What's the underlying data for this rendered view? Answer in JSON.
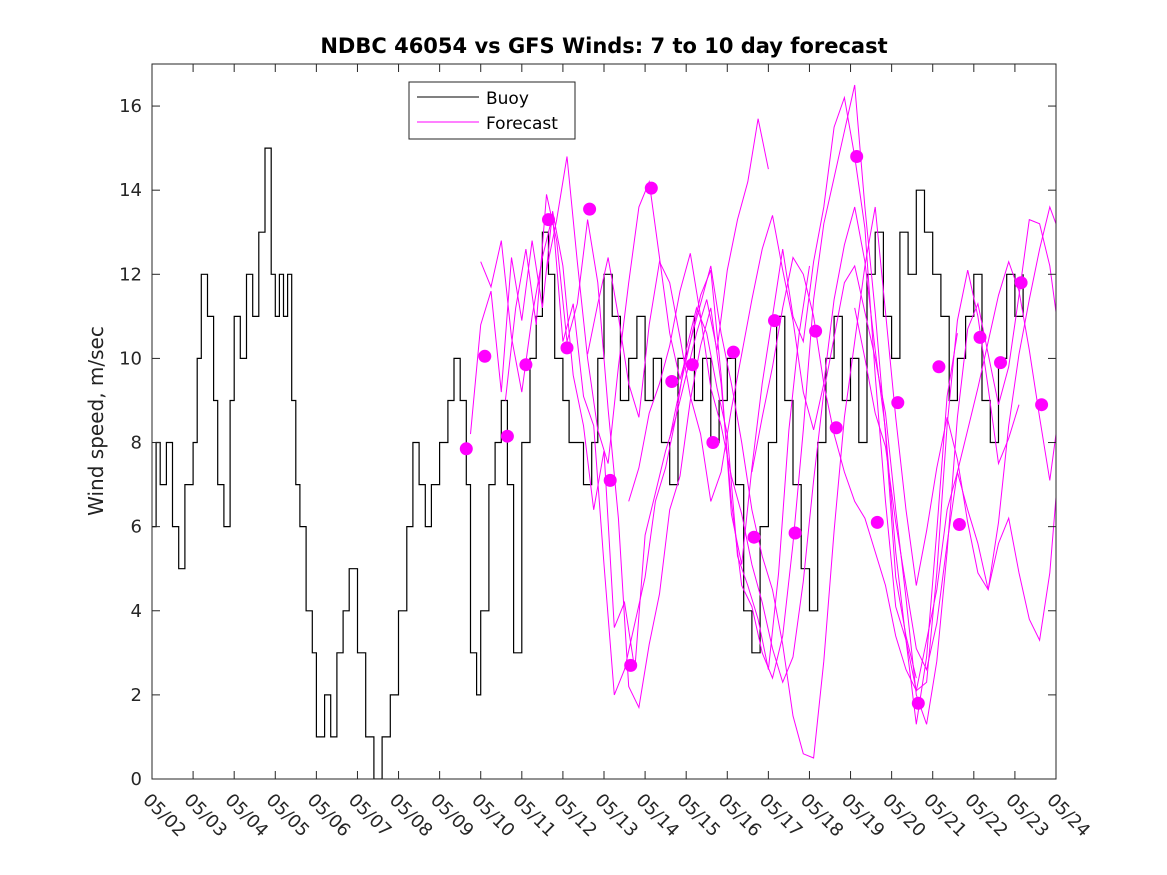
{
  "chart_data": {
    "type": "line",
    "title": "NDBC 46054 vs GFS Winds: 7 to 10 day forecast",
    "xlabel": "",
    "ylabel": "Wind speed, m/sec",
    "xlim": [
      "05/02",
      "05/24"
    ],
    "ylim": [
      0,
      17
    ],
    "y_ticks": [
      0,
      2,
      4,
      6,
      8,
      10,
      12,
      14,
      16
    ],
    "x_ticks": [
      "05/02",
      "05/03",
      "05/04",
      "05/05",
      "05/06",
      "05/07",
      "05/08",
      "05/09",
      "05/10",
      "05/11",
      "05/12",
      "05/13",
      "05/14",
      "05/15",
      "05/16",
      "05/17",
      "05/18",
      "05/19",
      "05/20",
      "05/21",
      "05/22",
      "05/23",
      "05/24"
    ],
    "grid": false,
    "legend": {
      "position": "top-center",
      "entries": [
        "Buoy",
        "Forecast"
      ]
    },
    "colors": {
      "Buoy": "#000000",
      "Forecast": "#ff00ff"
    },
    "x_unit": "day of month (May)",
    "series": [
      {
        "name": "Buoy",
        "style": "line",
        "x": [
          2.0,
          2.1,
          2.2,
          2.35,
          2.5,
          2.65,
          2.8,
          3.0,
          3.1,
          3.2,
          3.35,
          3.5,
          3.6,
          3.75,
          3.9,
          4.0,
          4.15,
          4.3,
          4.45,
          4.6,
          4.75,
          4.9,
          5.0,
          5.1,
          5.2,
          5.3,
          5.4,
          5.5,
          5.6,
          5.75,
          5.9,
          6.0,
          6.2,
          6.35,
          6.5,
          6.65,
          6.8,
          7.0,
          7.2,
          7.4,
          7.6,
          7.8,
          8.0,
          8.2,
          8.35,
          8.5,
          8.65,
          8.8,
          9.0,
          9.2,
          9.35,
          9.5,
          9.65,
          9.75,
          9.9,
          10.0,
          10.2,
          10.35,
          10.5,
          10.65,
          10.8,
          11.0,
          11.2,
          11.35,
          11.5,
          11.65,
          11.8,
          12.0,
          12.15,
          12.3,
          12.5,
          12.7,
          12.85,
          13.0,
          13.2,
          13.4,
          13.6,
          13.8,
          14.0,
          14.2,
          14.4,
          14.6,
          14.8,
          15.0,
          15.2,
          15.4,
          15.6,
          15.8,
          16.0,
          16.2,
          16.4,
          16.6,
          16.8,
          17.0,
          17.2,
          17.4,
          17.6,
          17.8,
          18.0,
          18.2,
          18.4,
          18.6,
          18.8,
          19.0,
          19.2,
          19.4,
          19.6,
          19.8,
          20.0,
          20.2,
          20.4,
          20.6,
          20.8,
          21.0,
          21.2,
          21.4,
          21.6,
          21.8,
          22.0,
          22.2,
          22.4,
          22.6,
          22.8,
          23.0,
          23.2
        ],
        "y": [
          6,
          8,
          7,
          8,
          6,
          5,
          7,
          8,
          10,
          12,
          11,
          9,
          7,
          6,
          9,
          11,
          10,
          12,
          11,
          13,
          15,
          12,
          11,
          12,
          11,
          12,
          9,
          7,
          6,
          4,
          3,
          1,
          2,
          1,
          3,
          4,
          5,
          3,
          1,
          0,
          1,
          2,
          4,
          6,
          8,
          7,
          6,
          7,
          8,
          9,
          10,
          9,
          7,
          3,
          2,
          4,
          7,
          8,
          9,
          7,
          3,
          8,
          10,
          11,
          13,
          12,
          10,
          9,
          8,
          8,
          7,
          8,
          10,
          12,
          11,
          9,
          10,
          11,
          9,
          10,
          8,
          7,
          10,
          11,
          9,
          10,
          8,
          9,
          10,
          7,
          4,
          3,
          6,
          8,
          11,
          9,
          7,
          5,
          4,
          8,
          10,
          11,
          9,
          10,
          8,
          12,
          13,
          11,
          10,
          13,
          12,
          14,
          13,
          12,
          11,
          9,
          10,
          11,
          12,
          9,
          8,
          10,
          12,
          11,
          12
        ]
      },
      {
        "name": "Forecast",
        "style": "line",
        "runs": [
          {
            "x": [
              9.75,
              10.0,
              10.25,
              10.5,
              10.75,
              11.0,
              11.25,
              11.5,
              11.75,
              12.0,
              12.25,
              12.5,
              12.75,
              13.0,
              13.25,
              13.5,
              13.75,
              14.0,
              14.25,
              14.5,
              14.75,
              15.0,
              15.25,
              15.5,
              15.75,
              16.0,
              16.25,
              16.5,
              16.75,
              17.0
            ],
            "y": [
              8.2,
              10.8,
              11.6,
              9.2,
              12.4,
              10.9,
              12.8,
              11.2,
              13.5,
              12.2,
              9.6,
              8.4,
              6.4,
              7.8,
              3.6,
              4.2,
              2.6,
              5.8,
              6.8,
              7.8,
              8.6,
              9.6,
              10.6,
              11.4,
              10.2,
              12.1,
              13.3,
              14.2,
              15.7,
              14.5
            ]
          },
          {
            "x": [
              10.0,
              10.25,
              10.5,
              10.75,
              11.0,
              11.25,
              11.5,
              11.75,
              12.0,
              12.25,
              12.5,
              12.75,
              13.0,
              13.25,
              13.5,
              13.75,
              14.0,
              14.25,
              14.5,
              14.75,
              15.0,
              15.25,
              15.5,
              15.75,
              16.0,
              16.25,
              16.5,
              16.75,
              17.0,
              17.25,
              17.5,
              17.75,
              18.0
            ],
            "y": [
              12.3,
              11.7,
              12.8,
              10.5,
              9.2,
              11.0,
              12.4,
              13.4,
              10.4,
              11.3,
              9.1,
              8.4,
              5.1,
              2.0,
              2.6,
              3.7,
              4.8,
              6.6,
              7.4,
              8.6,
              10.2,
              11.2,
              10.6,
              9.3,
              8.2,
              5.3,
              4.6,
              3.8,
              2.6,
              4.9,
              8.3,
              10.6,
              12.2
            ]
          },
          {
            "x": [
              10.6,
              10.85,
              11.1,
              11.35,
              11.6,
              11.85,
              12.1,
              12.35,
              12.6,
              12.85,
              13.1,
              13.35,
              13.6,
              13.85,
              14.1,
              14.35,
              14.6,
              14.85,
              15.1,
              15.35,
              15.6,
              15.85,
              16.1,
              16.35,
              16.6,
              16.85,
              17.1,
              17.35,
              17.6,
              17.85,
              18.1,
              18.35,
              18.6,
              18.85,
              19.1,
              19.35,
              19.6,
              19.85,
              20.1,
              20.35,
              20.6
            ],
            "y": [
              9.0,
              11.2,
              12.6,
              10.8,
              13.9,
              12.8,
              10.4,
              11.3,
              13.3,
              11.8,
              8.8,
              6.2,
              2.2,
              1.7,
              3.2,
              4.4,
              6.4,
              7.2,
              9.0,
              10.3,
              11.2,
              9.4,
              6.6,
              4.6,
              4.1,
              3.0,
              2.4,
              3.4,
              5.6,
              8.3,
              11.4,
              13.2,
              14.3,
              15.4,
              16.5,
              13.6,
              11.1,
              8.2,
              4.8,
              3.4,
              2.4
            ]
          },
          {
            "x": [
              11.6,
              11.85,
              12.1,
              12.35,
              12.6,
              12.85,
              13.1,
              13.35,
              13.6,
              13.85,
              14.1,
              14.35,
              14.6,
              14.85,
              15.1,
              15.35,
              15.6,
              15.85,
              16.1,
              16.35,
              16.6,
              16.85,
              17.1,
              17.35,
              17.6,
              17.85,
              18.1,
              18.35,
              18.6,
              18.85,
              19.1,
              19.35,
              19.6,
              19.85,
              20.1,
              20.35,
              20.6,
              20.85,
              21.1,
              21.35,
              21.6
            ],
            "y": [
              12.1,
              13.3,
              14.8,
              12.3,
              10.0,
              8.3,
              7.5,
              9.8,
              11.8,
              13.6,
              14.2,
              12.4,
              10.6,
              9.5,
              10.4,
              11.5,
              12.1,
              9.6,
              6.3,
              5.1,
              7.4,
              9.4,
              11.0,
              12.6,
              11.0,
              10.4,
              12.3,
              13.6,
              15.5,
              16.2,
              14.8,
              13.1,
              9.6,
              6.6,
              4.1,
              3.3,
              1.3,
              2.9,
              5.9,
              9.1,
              10.6
            ]
          },
          {
            "x": [
              12.6,
              12.85,
              13.1,
              13.35,
              13.6,
              13.85,
              14.1,
              14.35,
              14.6,
              14.85,
              15.1,
              15.35,
              15.6,
              15.85,
              16.1,
              16.35,
              16.6,
              16.85,
              17.1,
              17.35,
              17.6,
              17.85,
              18.1,
              18.35,
              18.6,
              18.85,
              19.1,
              19.35,
              19.6,
              19.85,
              20.1,
              20.35,
              20.6,
              20.85,
              21.1,
              21.35,
              21.6,
              21.85,
              22.1,
              22.35,
              22.6,
              22.85,
              23.1
            ],
            "y": [
              10.1,
              11.3,
              12.4,
              11.0,
              9.4,
              8.6,
              10.8,
              12.3,
              11.8,
              10.5,
              9.1,
              8.2,
              6.6,
              7.3,
              8.8,
              10.1,
              11.4,
              12.6,
              13.4,
              12.1,
              10.9,
              9.2,
              8.3,
              9.4,
              11.4,
              12.7,
              13.6,
              12.3,
              10.2,
              8.3,
              5.4,
              3.3,
              2.1,
              2.3,
              4.9,
              8.4,
              10.9,
              12.1,
              11.0,
              9.3,
              7.5,
              8.1,
              8.9
            ]
          },
          {
            "x": [
              13.6,
              13.85,
              14.1,
              14.35,
              14.6,
              14.85,
              15.1,
              15.35,
              15.6,
              15.85,
              16.1,
              16.35,
              16.6,
              16.85,
              17.1,
              17.35,
              17.6,
              17.85,
              18.1,
              18.35,
              18.6,
              18.85,
              19.1,
              19.35,
              19.6,
              19.85,
              20.1,
              20.35,
              20.6,
              20.85,
              21.1,
              21.35,
              21.6,
              21.85,
              22.1,
              22.35,
              22.6,
              22.85,
              23.1,
              23.35,
              23.6,
              23.85,
              24.0
            ],
            "y": [
              6.6,
              7.4,
              8.7,
              9.4,
              10.3,
              11.6,
              12.5,
              11.0,
              9.3,
              8.4,
              7.2,
              6.3,
              5.1,
              4.2,
              3.1,
              2.3,
              2.9,
              4.7,
              7.1,
              9.2,
              10.5,
              11.8,
              12.2,
              11.1,
              10.0,
              8.7,
              6.4,
              4.3,
              2.0,
              1.3,
              2.8,
              5.4,
              8.6,
              10.7,
              11.3,
              10.1,
              8.9,
              9.8,
              11.5,
              13.3,
              13.2,
              12.2,
              11.1
            ]
          },
          {
            "x": [
              14.6,
              14.85,
              15.1,
              15.35,
              15.6,
              15.85,
              16.1,
              16.35,
              16.6,
              16.85,
              17.1,
              17.35,
              17.6,
              17.85,
              18.1,
              18.35,
              18.6,
              18.85,
              19.1,
              19.35,
              19.6,
              19.85,
              20.1,
              20.35,
              20.6,
              20.85,
              21.1,
              21.35,
              21.6,
              21.85,
              22.1,
              22.35,
              22.6,
              22.85,
              23.1,
              23.35,
              23.6,
              23.85,
              24.0
            ],
            "y": [
              8.1,
              9.3,
              10.4,
              11.3,
              12.2,
              10.6,
              9.4,
              8.0,
              6.4,
              5.3,
              4.5,
              3.2,
              1.5,
              0.6,
              0.5,
              2.8,
              5.9,
              8.6,
              10.4,
              12.2,
              13.6,
              11.1,
              8.6,
              6.4,
              4.6,
              5.9,
              7.4,
              8.6,
              7.6,
              6.1,
              4.9,
              4.5,
              6.1,
              8.4,
              10.1,
              11.4,
              12.6,
              13.6,
              13.2
            ]
          },
          {
            "x": [
              16.6,
              16.85,
              17.1,
              17.35,
              17.6,
              17.85,
              18.1,
              18.35,
              18.6,
              18.85,
              19.1,
              19.35,
              19.6,
              19.85,
              20.1,
              20.35,
              20.6,
              20.85,
              21.1,
              21.35,
              21.6,
              21.85,
              22.1,
              22.35,
              22.6,
              22.85,
              23.1,
              23.35,
              23.6,
              23.85,
              24.0
            ],
            "y": [
              7.3,
              8.6,
              9.8,
              11.2,
              12.4,
              12.0,
              11.0,
              9.4,
              8.2,
              7.3,
              6.6,
              6.2,
              5.4,
              4.6,
              3.4,
              2.6,
              2.1,
              3.3,
              4.5,
              6.4,
              7.3,
              6.4,
              5.6,
              4.5,
              5.6,
              6.2,
              4.9,
              3.8,
              3.3,
              4.9,
              6.7
            ]
          },
          {
            "x": [
              19.1,
              19.35,
              19.6,
              19.85,
              20.1,
              20.35,
              20.6,
              20.85,
              21.1,
              21.35,
              21.6,
              21.85,
              22.1,
              22.35,
              22.6,
              22.85,
              23.1,
              23.35,
              23.6,
              23.85,
              24.0
            ],
            "y": [
              11.2,
              10.0,
              8.7,
              7.9,
              6.1,
              4.6,
              3.1,
              2.6,
              3.7,
              5.6,
              7.3,
              8.3,
              9.3,
              10.4,
              11.5,
              12.3,
              11.6,
              10.2,
              8.6,
              7.1,
              8.2
            ]
          }
        ]
      },
      {
        "name": "Forecast",
        "style": "markers",
        "x": [
          9.65,
          10.1,
          10.65,
          11.1,
          11.65,
          12.1,
          12.65,
          13.15,
          13.65,
          14.15,
          14.65,
          15.15,
          15.65,
          16.15,
          16.65,
          17.15,
          17.65,
          18.15,
          18.65,
          19.15,
          19.65,
          20.15,
          20.65,
          21.15,
          21.65,
          22.15,
          22.65,
          23.15,
          23.65
        ],
        "y": [
          7.85,
          10.05,
          8.15,
          9.85,
          13.3,
          10.25,
          13.55,
          7.1,
          2.7,
          14.05,
          9.45,
          9.85,
          8.0,
          10.15,
          5.75,
          10.9,
          5.85,
          10.65,
          8.35,
          14.8,
          6.1,
          8.95,
          1.8,
          9.8,
          6.05,
          10.5,
          9.9,
          11.8,
          8.9
        ]
      }
    ]
  }
}
